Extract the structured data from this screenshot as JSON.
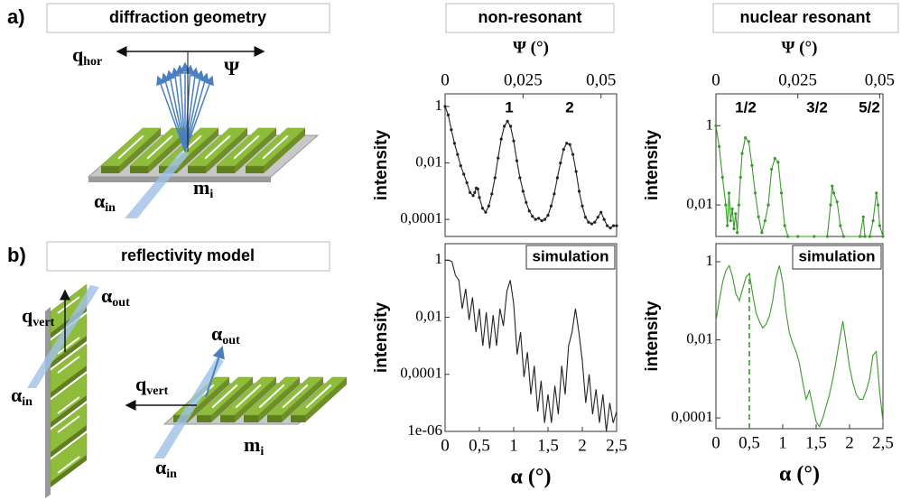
{
  "panels": {
    "a": {
      "label": "a)",
      "title": "diffraction geometry",
      "q_hor": {
        "symbol": "q",
        "subscript": "hor"
      },
      "psi": "Ψ",
      "alpha_in": {
        "symbol": "α",
        "subscript": "in"
      },
      "m_i": {
        "symbol": "m",
        "subscript": "i"
      }
    },
    "b": {
      "label": "b)",
      "title": "reflectivity model",
      "q_vert_1": {
        "symbol": "q",
        "subscript": "vert"
      },
      "alpha_out_1": {
        "symbol": "α",
        "subscript": "out"
      },
      "alpha_in_1": {
        "symbol": "α",
        "subscript": "in"
      },
      "q_vert_2": {
        "symbol": "q",
        "subscript": "vert"
      },
      "alpha_out_2": {
        "symbol": "α",
        "subscript": "out"
      },
      "alpha_in_2": {
        "symbol": "α",
        "subscript": "in"
      },
      "m_i": {
        "symbol": "m",
        "subscript": "i"
      }
    }
  },
  "columns": [
    "non-resonant",
    "nuclear resonant"
  ],
  "chart_data": [
    {
      "type": "line",
      "x_label": "Ψ (°)",
      "y_label": "intensity",
      "color": "#222222",
      "markers": true,
      "log_y": true,
      "x_axis": "top",
      "x": [
        0,
        0.001,
        0.002,
        0.003,
        0.004,
        0.005,
        0.006,
        0.007,
        0.008,
        0.009,
        0.0095,
        0.01,
        0.0105,
        0.011,
        0.012,
        0.013,
        0.014,
        0.015,
        0.016,
        0.017,
        0.018,
        0.019,
        0.02,
        0.021,
        0.022,
        0.023,
        0.024,
        0.025,
        0.026,
        0.027,
        0.028,
        0.029,
        0.03,
        0.031,
        0.032,
        0.033,
        0.034,
        0.035,
        0.036,
        0.037,
        0.038,
        0.039,
        0.04,
        0.041,
        0.042,
        0.043,
        0.044,
        0.045,
        0.046,
        0.047,
        0.048,
        0.049,
        0.05,
        0.051,
        0.052,
        0.053,
        0.054,
        0.055
      ],
      "values": [
        1,
        0.5,
        0.15,
        0.05,
        0.02,
        0.008,
        0.004,
        0.002,
        0.0009,
        0.0007,
        0.0009,
        0.0013,
        0.0012,
        0.0006,
        0.00025,
        0.00018,
        0.0003,
        0.0008,
        0.003,
        0.015,
        0.07,
        0.2,
        0.3,
        0.2,
        0.06,
        0.012,
        0.003,
        0.001,
        0.0004,
        0.0002,
        0.00013,
        0.0001,
        0.00011,
        9e-05,
        0.0001,
        0.00014,
        0.0003,
        0.0008,
        0.003,
        0.01,
        0.03,
        0.05,
        0.045,
        0.02,
        0.005,
        0.001,
        0.0003,
        0.00012,
        8e-05,
        7e-05,
        8e-05,
        0.00012,
        0.00018,
        0.0001,
        6e-05,
        5e-05,
        6e-05,
        6e-05
      ],
      "xlim": [
        0,
        0.055
      ],
      "ylim": [
        2.5e-05,
        2.8
      ],
      "xticks": [
        0,
        {
          "value": 0.025,
          "label": "0,025"
        },
        {
          "value": 0.05,
          "label": "0,05"
        }
      ],
      "yticks": [
        1,
        {
          "value": 0.01,
          "label": "0,01"
        },
        {
          "value": 0.0001,
          "label": "0,0001"
        }
      ],
      "annotations": [
        "1",
        "2"
      ]
    },
    {
      "type": "line",
      "x_label": "α (°)",
      "y_label": "intensity",
      "color": "#222222",
      "markers": false,
      "log_y": true,
      "x_axis": "bottom",
      "x": [
        0,
        0.05,
        0.1,
        0.15,
        0.2,
        0.25,
        0.3,
        0.35,
        0.4,
        0.45,
        0.5,
        0.55,
        0.6,
        0.65,
        0.7,
        0.75,
        0.8,
        0.85,
        0.9,
        0.95,
        1,
        1.05,
        1.1,
        1.15,
        1.2,
        1.25,
        1.3,
        1.35,
        1.4,
        1.45,
        1.5,
        1.55,
        1.6,
        1.65,
        1.7,
        1.75,
        1.8,
        1.85,
        1.9,
        1.95,
        2,
        2.05,
        2.1,
        2.15,
        2.2,
        2.25,
        2.3,
        2.35,
        2.4,
        2.45,
        2.5
      ],
      "values": [
        1,
        1,
        0.9,
        0.3,
        0.2,
        0.02,
        0.1,
        0.008,
        0.05,
        0.003,
        0.02,
        0.001,
        0.015,
        0.0008,
        0.012,
        0.001,
        0.02,
        0.005,
        0.08,
        0.2,
        0.03,
        0.0005,
        0.003,
        8e-05,
        0.0006,
        2e-05,
        0.0002,
        5e-06,
        6e-05,
        2e-06,
        2e-05,
        2e-06,
        4e-05,
        4e-06,
        0.0002,
        2e-05,
        0.001,
        0.003,
        0.02,
        0.003,
        0.0003,
        1e-05,
        0.0001,
        4e-06,
        3e-05,
        2e-06,
        2e-05,
        1e-06,
        1e-05,
        2e-06,
        5e-06
      ],
      "xlim": [
        0,
        2.5
      ],
      "ylim": [
        1e-06,
        3.8
      ],
      "xticks": [
        0,
        {
          "value": 0.5,
          "label": "0,5"
        },
        1,
        {
          "value": 1.5,
          "label": "1,5"
        },
        2,
        {
          "value": 2.5,
          "label": "2,5"
        }
      ],
      "yticks": [
        1,
        {
          "value": 0.01,
          "label": "0,01"
        },
        {
          "value": 0.0001,
          "label": "0,0001"
        },
        {
          "value": 1e-06,
          "label": "1e-06"
        }
      ],
      "annotation_box": "simulation"
    },
    {
      "type": "line",
      "x_label": "Ψ (°)",
      "y_label": "intensity",
      "color": "#3a9a2a",
      "markers": true,
      "log_y": true,
      "x_axis": "top",
      "x": [
        0,
        0.001,
        0.002,
        0.003,
        0.0035,
        0.004,
        0.0045,
        0.005,
        0.0055,
        0.006,
        0.0065,
        0.007,
        0.0075,
        0.008,
        0.009,
        0.01,
        0.011,
        0.012,
        0.013,
        0.014,
        0.015,
        0.016,
        0.017,
        0.018,
        0.019,
        0.02,
        0.021,
        0.022,
        0.025,
        0.03,
        0.034,
        0.035,
        0.0355,
        0.036,
        0.037,
        0.038,
        0.039,
        0.044,
        0.045,
        0.0455,
        0.047,
        0.048,
        0.049,
        0.0495,
        0.05,
        0.051
      ],
      "values": [
        1,
        0.3,
        0.05,
        0.01,
        0.003,
        0.02,
        0.004,
        0.008,
        0.0025,
        0.006,
        0.002,
        0.01,
        0.05,
        0.2,
        0.5,
        0.4,
        0.1,
        0.02,
        0.005,
        0.002,
        0.004,
        0.01,
        0.08,
        0.15,
        0.12,
        0.02,
        0.003,
        0.0016,
        0.0016,
        0.0016,
        0.0016,
        0.01,
        0.03,
        0.02,
        0.012,
        0.003,
        0.0016,
        0.0016,
        0.005,
        0.0016,
        0.0016,
        0.004,
        0.02,
        0.01,
        0.003,
        0.0016
      ],
      "xlim": [
        0,
        0.051
      ],
      "ylim": [
        0.0016,
        6.4
      ],
      "xticks": [
        0,
        {
          "value": 0.025,
          "label": "0,025"
        },
        {
          "value": 0.05,
          "label": "0,05"
        }
      ],
      "yticks": [
        1,
        {
          "value": 0.01,
          "label": "0,01"
        }
      ],
      "annotations": [
        "1/2",
        "3/2",
        "5/2"
      ]
    },
    {
      "type": "line",
      "x_label": "α (°)",
      "y_label": "intensity",
      "color": "#3a9a2a",
      "markers": false,
      "log_y": true,
      "x_axis": "bottom",
      "x": [
        0,
        0.05,
        0.1,
        0.15,
        0.2,
        0.25,
        0.3,
        0.35,
        0.4,
        0.45,
        0.5,
        0.55,
        0.6,
        0.65,
        0.7,
        0.75,
        0.8,
        0.85,
        0.9,
        0.95,
        1,
        1.05,
        1.1,
        1.15,
        1.2,
        1.25,
        1.3,
        1.35,
        1.4,
        1.45,
        1.5,
        1.55,
        1.6,
        1.65,
        1.7,
        1.75,
        1.8,
        1.85,
        1.9,
        1.95,
        2,
        2.05,
        2.1,
        2.15,
        2.2,
        2.25,
        2.3,
        2.35,
        2.4,
        2.45,
        2.5
      ],
      "values": [
        0.03,
        0.1,
        0.3,
        0.6,
        0.8,
        0.4,
        0.15,
        0.1,
        0.2,
        0.4,
        0.5,
        0.15,
        0.05,
        0.03,
        0.02,
        0.025,
        0.04,
        0.1,
        0.4,
        0.8,
        0.3,
        0.05,
        0.015,
        0.008,
        0.005,
        0.0025,
        0.0008,
        0.0003,
        0.0005,
        0.0002,
        8e-05,
        6e-05,
        0.0001,
        0.0002,
        0.0004,
        0.001,
        0.003,
        0.01,
        0.03,
        0.008,
        0.002,
        0.0008,
        0.0004,
        0.0003,
        0.0003,
        0.0005,
        0.001,
        0.004,
        0.005,
        0.0005,
        8e-05
      ],
      "xlim": [
        0,
        2.5
      ],
      "ylim": [
        5.3e-05,
        2.9
      ],
      "xticks": [
        0,
        {
          "value": 0.5,
          "label": "0,5"
        },
        1,
        {
          "value": 1.5,
          "label": "1,5"
        },
        2,
        {
          "value": 2.5,
          "label": "2,5"
        }
      ],
      "yticks": [
        1,
        {
          "value": 0.01,
          "label": "0,01"
        },
        {
          "value": 0.0001,
          "label": "0,0001"
        }
      ],
      "annotation_box": "simulation",
      "reference_line_x": 0.5
    }
  ]
}
